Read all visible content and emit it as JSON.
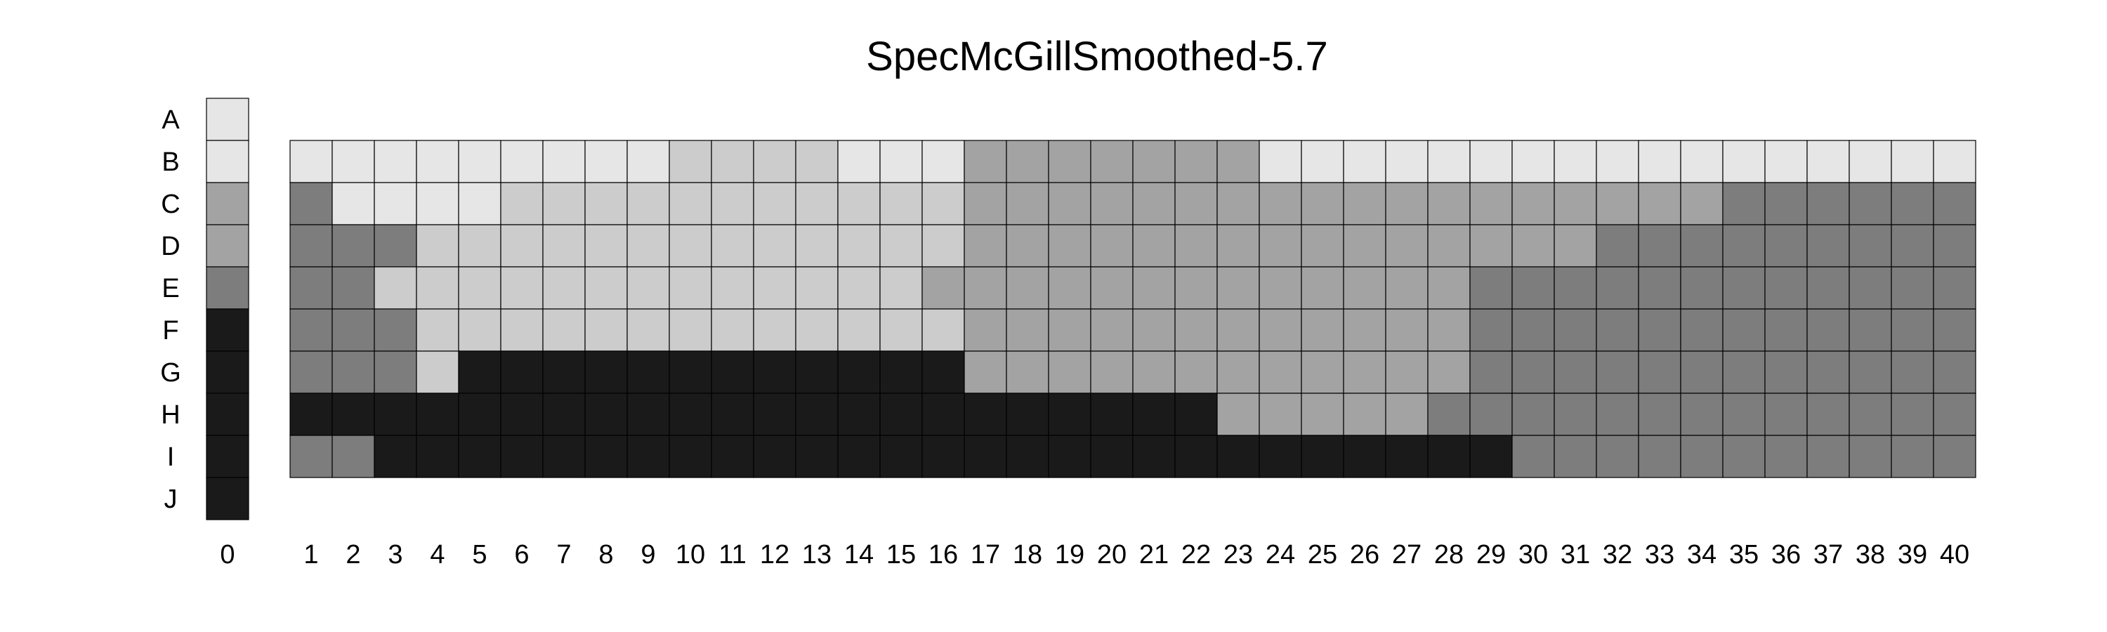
{
  "chart_data": {
    "type": "heatmap",
    "title": "SpecMcGillSmoothed-5.7",
    "rows": [
      "A",
      "B",
      "C",
      "D",
      "E",
      "F",
      "G",
      "H",
      "I",
      "J"
    ],
    "columns": [
      "0",
      "1",
      "2",
      "3",
      "4",
      "5",
      "6",
      "7",
      "8",
      "9",
      "10",
      "11",
      "12",
      "13",
      "14",
      "15",
      "16",
      "17",
      "18",
      "19",
      "20",
      "21",
      "22",
      "23",
      "24",
      "25",
      "26",
      "27",
      "28",
      "29",
      "30",
      "31",
      "32",
      "33",
      "34",
      "35",
      "36",
      "37",
      "38",
      "39",
      "40"
    ],
    "levels": {
      "1": "#e6e6e6",
      "2": "#cccccc",
      "3": "#a3a3a3",
      "4": "#7d7d7d",
      "5": "#1a1a1a"
    },
    "legend_column": {
      "column": "0",
      "rows": [
        "A",
        "B",
        "C",
        "D",
        "E",
        "F",
        "G",
        "H",
        "I",
        "J"
      ],
      "values": [
        1,
        1,
        3,
        3,
        4,
        5,
        5,
        5,
        5,
        5
      ]
    },
    "grid": {
      "columns": [
        "1",
        "2",
        "3",
        "4",
        "5",
        "6",
        "7",
        "8",
        "9",
        "10",
        "11",
        "12",
        "13",
        "14",
        "15",
        "16",
        "17",
        "18",
        "19",
        "20",
        "21",
        "22",
        "23",
        "24",
        "25",
        "26",
        "27",
        "28",
        "29",
        "30",
        "31",
        "32",
        "33",
        "34",
        "35",
        "36",
        "37",
        "38",
        "39",
        "40"
      ],
      "rows": [
        "B",
        "C",
        "D",
        "E",
        "F",
        "G",
        "H",
        "I"
      ],
      "values": [
        [
          1,
          1,
          1,
          1,
          1,
          1,
          1,
          1,
          1,
          2,
          2,
          2,
          2,
          1,
          1,
          1,
          3,
          3,
          3,
          3,
          3,
          3,
          3,
          1,
          1,
          1,
          1,
          1,
          1,
          1,
          1,
          1,
          1,
          1,
          1,
          1,
          1,
          1,
          1,
          1
        ],
        [
          4,
          1,
          1,
          1,
          1,
          2,
          2,
          2,
          2,
          2,
          2,
          2,
          2,
          2,
          2,
          2,
          3,
          3,
          3,
          3,
          3,
          3,
          3,
          3,
          3,
          3,
          3,
          3,
          3,
          3,
          3,
          3,
          3,
          3,
          4,
          4,
          4,
          4,
          4,
          4
        ],
        [
          4,
          4,
          4,
          2,
          2,
          2,
          2,
          2,
          2,
          2,
          2,
          2,
          2,
          2,
          2,
          2,
          3,
          3,
          3,
          3,
          3,
          3,
          3,
          3,
          3,
          3,
          3,
          3,
          3,
          3,
          3,
          4,
          4,
          4,
          4,
          4,
          4,
          4,
          4,
          4
        ],
        [
          4,
          4,
          2,
          2,
          2,
          2,
          2,
          2,
          2,
          2,
          2,
          2,
          2,
          2,
          2,
          3,
          3,
          3,
          3,
          3,
          3,
          3,
          3,
          3,
          3,
          3,
          3,
          3,
          4,
          4,
          4,
          4,
          4,
          4,
          4,
          4,
          4,
          4,
          4,
          4
        ],
        [
          4,
          4,
          4,
          2,
          2,
          2,
          2,
          2,
          2,
          2,
          2,
          2,
          2,
          2,
          2,
          2,
          3,
          3,
          3,
          3,
          3,
          3,
          3,
          3,
          3,
          3,
          3,
          3,
          4,
          4,
          4,
          4,
          4,
          4,
          4,
          4,
          4,
          4,
          4,
          4
        ],
        [
          4,
          4,
          4,
          2,
          5,
          5,
          5,
          5,
          5,
          5,
          5,
          5,
          5,
          5,
          5,
          5,
          3,
          3,
          3,
          3,
          3,
          3,
          3,
          3,
          3,
          3,
          3,
          3,
          4,
          4,
          4,
          4,
          4,
          4,
          4,
          4,
          4,
          4,
          4,
          4
        ],
        [
          5,
          5,
          5,
          5,
          5,
          5,
          5,
          5,
          5,
          5,
          5,
          5,
          5,
          5,
          5,
          5,
          5,
          5,
          5,
          5,
          5,
          5,
          3,
          3,
          3,
          3,
          3,
          4,
          4,
          4,
          4,
          4,
          4,
          4,
          4,
          4,
          4,
          4,
          4,
          4
        ],
        [
          4,
          4,
          5,
          5,
          5,
          5,
          5,
          5,
          5,
          5,
          5,
          5,
          5,
          5,
          5,
          5,
          5,
          5,
          5,
          5,
          5,
          5,
          5,
          5,
          5,
          5,
          5,
          5,
          5,
          4,
          4,
          4,
          4,
          4,
          4,
          4,
          4,
          4,
          4,
          4
        ]
      ]
    }
  }
}
